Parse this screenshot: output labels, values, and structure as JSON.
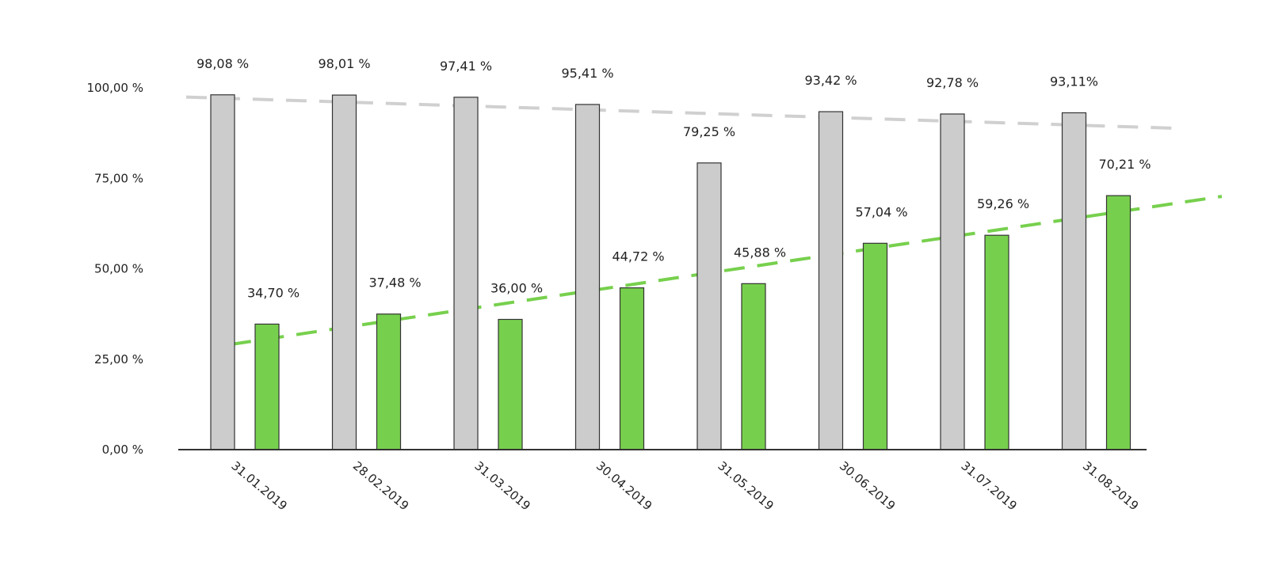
{
  "chart_data": {
    "type": "bar",
    "categories": [
      "31.01.2019",
      "28.02.2019",
      "31.03.2019",
      "30.04.2019",
      "31.05.2019",
      "30.06.2019",
      "31.07.2019",
      "31.08.2019"
    ],
    "series": [
      {
        "values": [
          98.08,
          98.01,
          97.41,
          95.41,
          79.25,
          93.42,
          92.78,
          93.11
        ],
        "labels": [
          "98,08 %",
          "98,01 %",
          "97,41 %",
          "95,41 %",
          "79,25 %",
          "93,42 %",
          "92,78 %",
          "93,11%"
        ],
        "color": "#cccccc"
      },
      {
        "values": [
          34.7,
          37.48,
          36.0,
          44.72,
          45.88,
          57.04,
          59.26,
          70.21
        ],
        "labels": [
          "34,70 %",
          "37,48 %",
          "36,00 %",
          "44,72 %",
          "45,88 %",
          "57,04 %",
          "59,26 %",
          "70,21 %"
        ],
        "color": "#77d04d"
      }
    ],
    "yticks": [
      "0,00 %",
      "25,00 %",
      "50,00 %",
      "75,00 %",
      "100,00 %"
    ],
    "ytick_values": [
      0,
      25,
      50,
      75,
      100
    ],
    "ylim": [
      0,
      100
    ],
    "trendlines": [
      {
        "series": 0,
        "color": "#d0d0d0",
        "style": "dashed"
      },
      {
        "series": 1,
        "color": "#77d04d",
        "style": "dashed"
      }
    ],
    "grid": false,
    "legend": "none"
  }
}
